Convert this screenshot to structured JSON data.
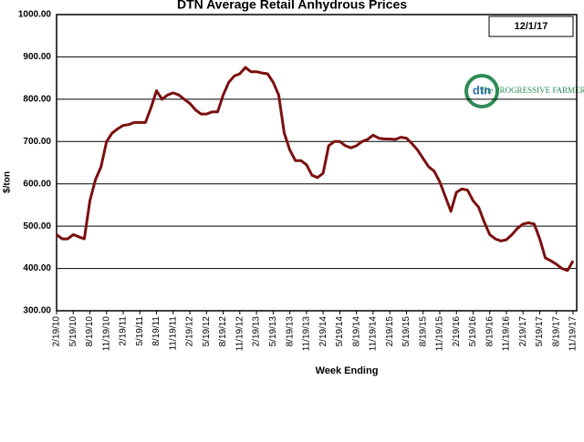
{
  "chart_data": {
    "type": "line",
    "title": "DTN Average Retail Anhydrous Prices",
    "annotation": "12/1/17",
    "xlabel": "Week Ending",
    "ylabel": "$/ton",
    "categories": [
      "2/19/10",
      null,
      null,
      "5/19/10",
      null,
      null,
      "8/19/10",
      null,
      null,
      "11/19/10",
      null,
      null,
      "2/19/11",
      null,
      null,
      "5/19/11",
      null,
      null,
      "8/19/11",
      null,
      null,
      "11/19/11",
      null,
      null,
      "2/19/12",
      null,
      null,
      "5/19/12",
      null,
      null,
      "8/19/12",
      null,
      null,
      "11/19/12",
      null,
      null,
      "2/19/13",
      null,
      null,
      "5/19/13",
      null,
      null,
      "8/19/13",
      null,
      null,
      "11/19/13",
      null,
      null,
      "2/19/14",
      null,
      null,
      "5/19/14",
      null,
      null,
      "8/19/14",
      null,
      null,
      "11/19/14",
      null,
      null,
      "2/19/15",
      null,
      null,
      "5/19/15",
      null,
      null,
      "8/19/15",
      null,
      null,
      "11/19/15",
      null,
      null,
      "2/19/16",
      null,
      null,
      "5/19/16",
      null,
      null,
      "8/19/16",
      null,
      null,
      "11/19/16",
      null,
      null,
      "2/19/17",
      null,
      null,
      "5/19/17",
      null,
      null,
      "8/19/17",
      null,
      null,
      "11/19/17"
    ],
    "series": [
      {
        "name": "Anhydrous",
        "color": "#7b1010",
        "values": [
          480,
          470,
          470,
          480,
          475,
          470,
          560,
          610,
          640,
          700,
          720,
          730,
          738,
          740,
          745,
          745,
          745,
          780,
          820,
          800,
          810,
          815,
          810,
          800,
          790,
          775,
          765,
          765,
          770,
          770,
          810,
          840,
          855,
          860,
          875,
          865,
          865,
          862,
          860,
          840,
          810,
          720,
          680,
          655,
          655,
          645,
          620,
          615,
          625,
          690,
          700,
          700,
          690,
          685,
          690,
          700,
          705,
          715,
          708,
          706,
          706,
          705,
          710,
          708,
          695,
          680,
          660,
          640,
          630,
          605,
          570,
          535,
          580,
          588,
          585,
          560,
          545,
          510,
          480,
          470,
          465,
          468,
          480,
          495,
          505,
          508,
          505,
          470,
          425,
          418,
          410,
          400,
          395,
          418
        ]
      }
    ],
    "ylim": [
      300,
      1000
    ],
    "yticks": [
      {
        "value": 300,
        "label": "300.00"
      },
      {
        "value": 400,
        "label": "400.00"
      },
      {
        "value": 500,
        "label": "500.00"
      },
      {
        "value": 600,
        "label": "600.00"
      },
      {
        "value": 700,
        "label": "700.00"
      },
      {
        "value": 800,
        "label": "800.00"
      },
      {
        "value": 900,
        "label": "900.00"
      },
      {
        "value": 1000,
        "label": "1000.00"
      }
    ],
    "grid": true
  },
  "logo": {
    "mark": "dtn",
    "text": "The PROGRESSIVE FARMER"
  }
}
